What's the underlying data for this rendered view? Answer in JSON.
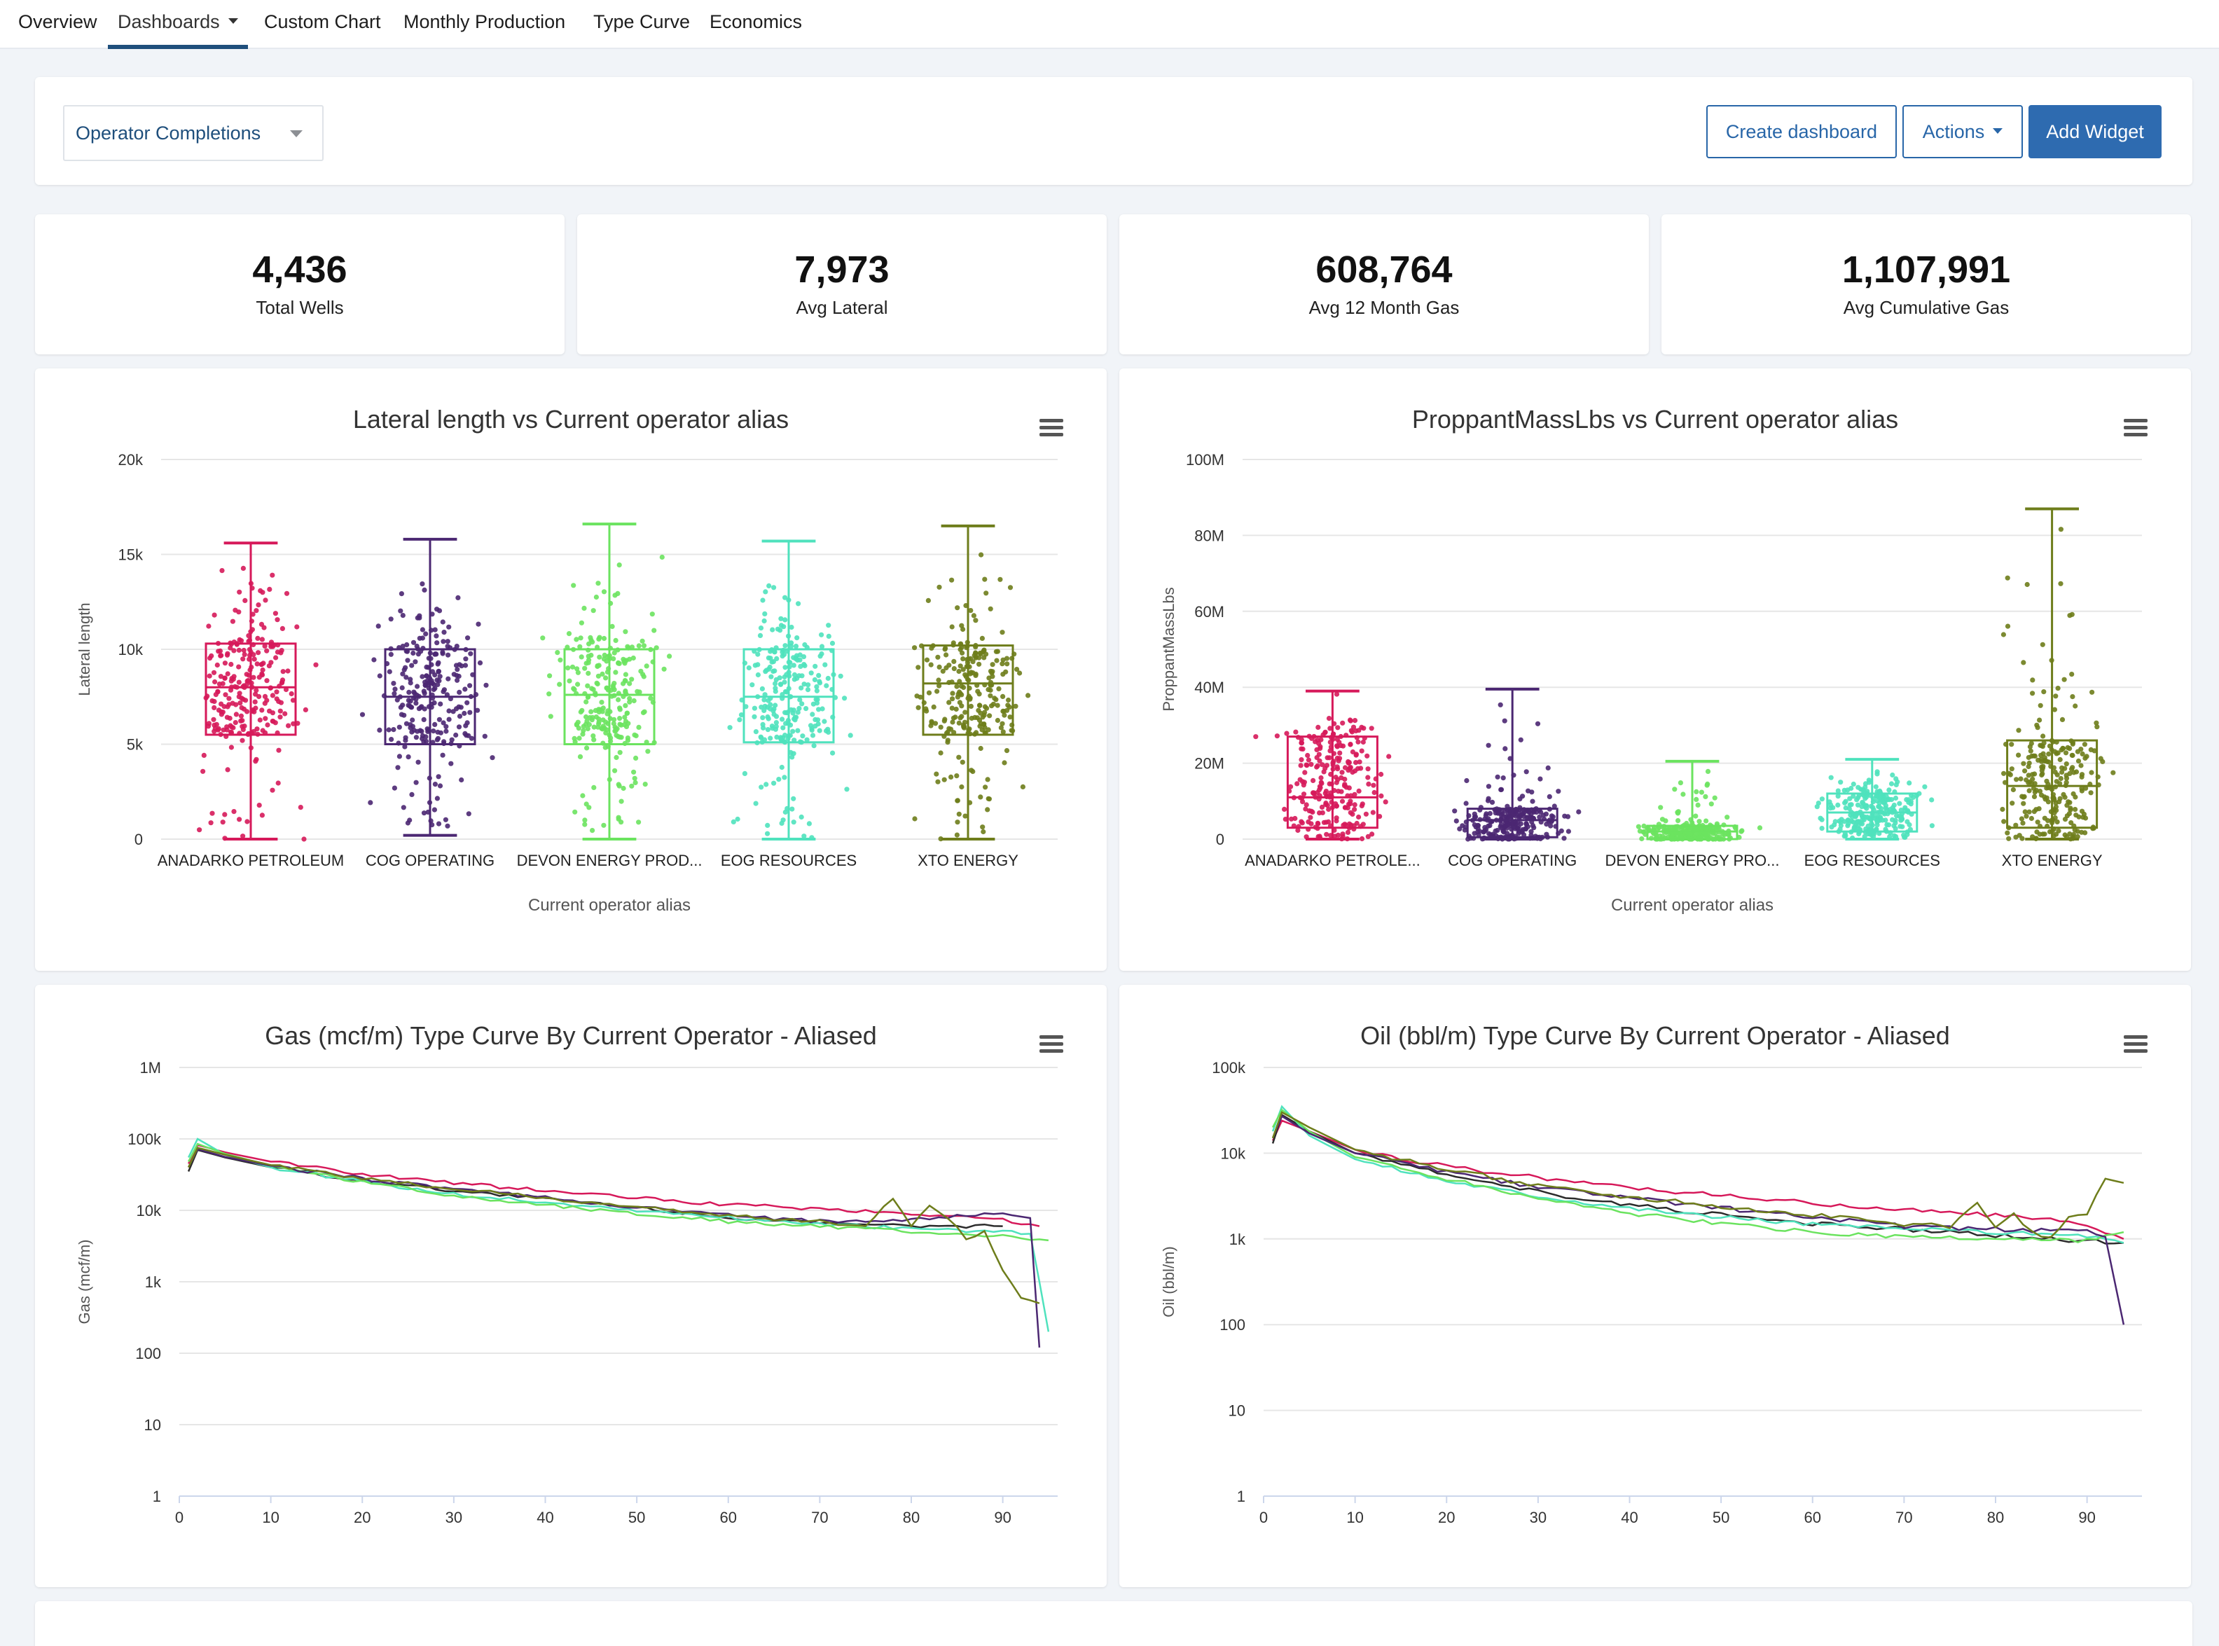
{
  "nav": {
    "tabs": [
      {
        "label": "Overview"
      },
      {
        "label": "Dashboards"
      },
      {
        "label": "Custom Chart"
      },
      {
        "label": "Monthly Production"
      },
      {
        "label": "Type Curve"
      },
      {
        "label": "Economics"
      }
    ]
  },
  "toolbar": {
    "dashboard_select": "Operator Completions",
    "create_label": "Create dashboard",
    "actions_label": "Actions",
    "add_widget_label": "Add Widget"
  },
  "kpis": [
    {
      "value": "4,436",
      "label": "Total Wells"
    },
    {
      "value": "7,973",
      "label": "Avg Lateral"
    },
    {
      "value": "608,764",
      "label": "Avg 12 Month Gas"
    },
    {
      "value": "1,107,991",
      "label": "Avg Cumulative Gas"
    }
  ],
  "colors": {
    "ANADARKO": "#d6195a",
    "COG": "#4b2772",
    "DEVON": "#6be35f",
    "EOG": "#4fe2bd",
    "XTO": "#6e7d1b",
    "BLACK": "#2b2b2b"
  },
  "chart_data": [
    {
      "type": "box",
      "title": "Lateral length vs Current operator alias",
      "xlabel": "Current operator alias",
      "ylabel": "Lateral length",
      "ylim": [
        0,
        20000
      ],
      "yticks": [
        "0",
        "5k",
        "10k",
        "15k",
        "20k"
      ],
      "categories": [
        "ANADARKO PETROLEUM",
        "COG OPERATING",
        "DEVON ENERGY PROD...",
        "EOG RESOURCES",
        "XTO ENERGY"
      ],
      "boxes": [
        {
          "low": 0,
          "q1": 5500,
          "median": 8000,
          "q3": 10300,
          "high": 15600
        },
        {
          "low": 200,
          "q1": 5000,
          "median": 7500,
          "q3": 10000,
          "high": 15800
        },
        {
          "low": 0,
          "q1": 5000,
          "median": 7600,
          "q3": 10000,
          "high": 16600
        },
        {
          "low": 0,
          "q1": 5100,
          "median": 7500,
          "q3": 10000,
          "high": 15700
        },
        {
          "low": 0,
          "q1": 5500,
          "median": 8200,
          "q3": 10200,
          "high": 16500
        }
      ]
    },
    {
      "type": "box",
      "title": "ProppantMassLbs vs Current operator alias",
      "xlabel": "Current operator alias",
      "ylabel": "ProppantMassLbs",
      "ylim": [
        0,
        100000000
      ],
      "yticks": [
        "0",
        "20M",
        "40M",
        "60M",
        "80M",
        "100M"
      ],
      "categories": [
        "ANADARKO PETROLE...",
        "COG OPERATING",
        "DEVON ENERGY PRO...",
        "EOG RESOURCES",
        "XTO ENERGY"
      ],
      "boxes": [
        {
          "low": 0,
          "q1": 3000000,
          "median": 11000000,
          "q3": 27000000,
          "high": 39000000
        },
        {
          "low": 0,
          "q1": 500000,
          "median": 5000000,
          "q3": 8000000,
          "high": 39500000
        },
        {
          "low": 0,
          "q1": 0,
          "median": 2000000,
          "q3": 3500000,
          "high": 20500000
        },
        {
          "low": 0,
          "q1": 2000000,
          "median": 7000000,
          "q3": 12000000,
          "high": 21000000
        },
        {
          "low": 0,
          "q1": 3000000,
          "median": 14000000,
          "q3": 26000000,
          "high": 87000000
        }
      ]
    },
    {
      "type": "line",
      "title": "Gas (mcf/m) Type Curve By Current Operator - Aliased",
      "ylabel": "Gas (mcf/m)",
      "yscale": "log",
      "ylim": [
        1,
        1000000
      ],
      "yticks": [
        "1",
        "10",
        "100",
        "1k",
        "10k",
        "100k",
        "1M"
      ],
      "xlim": [
        0,
        96
      ],
      "xticks": [
        "0",
        "10",
        "20",
        "30",
        "40",
        "50",
        "60",
        "70",
        "80",
        "90"
      ],
      "series": [
        {
          "color": "ANADARKO",
          "points": [
            [
              1,
              45000
            ],
            [
              2,
              82000
            ],
            [
              5,
              65000
            ],
            [
              10,
              48000
            ],
            [
              20,
              32000
            ],
            [
              30,
              24000
            ],
            [
              40,
              19000
            ],
            [
              50,
              15000
            ],
            [
              60,
              12000
            ],
            [
              70,
              10500
            ],
            [
              80,
              9000
            ],
            [
              90,
              7500
            ],
            [
              94,
              6000
            ]
          ]
        },
        {
          "color": "BLACK",
          "points": [
            [
              1,
              35000
            ],
            [
              2,
              70000
            ],
            [
              5,
              55000
            ],
            [
              10,
              40000
            ],
            [
              20,
              26000
            ],
            [
              30,
              19000
            ],
            [
              40,
              14500
            ],
            [
              50,
              11000
            ],
            [
              60,
              8000
            ],
            [
              70,
              6500
            ],
            [
              80,
              6000
            ],
            [
              90,
              6000
            ]
          ]
        },
        {
          "color": "EOG",
          "points": [
            [
              1,
              55000
            ],
            [
              2,
              100000
            ],
            [
              5,
              60000
            ],
            [
              10,
              40000
            ],
            [
              20,
              25000
            ],
            [
              30,
              17000
            ],
            [
              40,
              13000
            ],
            [
              50,
              10000
            ],
            [
              60,
              8000
            ],
            [
              70,
              6500
            ],
            [
              80,
              5500
            ],
            [
              90,
              5000
            ],
            [
              93,
              4800
            ],
            [
              95,
              200
            ]
          ]
        },
        {
          "color": "DEVON",
          "points": [
            [
              1,
              48000
            ],
            [
              2,
              85000
            ],
            [
              5,
              62000
            ],
            [
              10,
              42000
            ],
            [
              20,
              25000
            ],
            [
              30,
              16000
            ],
            [
              40,
              12000
            ],
            [
              50,
              9000
            ],
            [
              60,
              7000
            ],
            [
              70,
              6000
            ],
            [
              80,
              5000
            ],
            [
              90,
              4300
            ],
            [
              95,
              3800
            ]
          ]
        },
        {
          "color": "COG",
          "points": [
            [
              1,
              40000
            ],
            [
              2,
              72000
            ],
            [
              5,
              56000
            ],
            [
              10,
              42000
            ],
            [
              20,
              28000
            ],
            [
              30,
              20000
            ],
            [
              40,
              15000
            ],
            [
              50,
              11000
            ],
            [
              60,
              8500
            ],
            [
              70,
              7000
            ],
            [
              80,
              7500
            ],
            [
              90,
              9000
            ],
            [
              93,
              8000
            ],
            [
              94,
              120
            ]
          ]
        },
        {
          "color": "XTO",
          "points": [
            [
              1,
              40000
            ],
            [
              2,
              75000
            ],
            [
              5,
              60000
            ],
            [
              10,
              43000
            ],
            [
              20,
              28000
            ],
            [
              30,
              20000
            ],
            [
              40,
              15000
            ],
            [
              50,
              11000
            ],
            [
              60,
              8500
            ],
            [
              70,
              7000
            ],
            [
              75,
              6000
            ],
            [
              78,
              15000
            ],
            [
              80,
              6000
            ],
            [
              82,
              12000
            ],
            [
              84,
              8000
            ],
            [
              86,
              4000
            ],
            [
              88,
              5000
            ],
            [
              90,
              1500
            ],
            [
              92,
              600
            ],
            [
              94,
              500
            ]
          ]
        }
      ]
    },
    {
      "type": "line",
      "title": "Oil (bbl/m) Type Curve By Current Operator - Aliased",
      "ylabel": "Oil (bbl/m)",
      "yscale": "log",
      "ylim": [
        1,
        100000
      ],
      "yticks": [
        "1",
        "10",
        "100",
        "1k",
        "10k",
        "100k"
      ],
      "xlim": [
        0,
        96
      ],
      "xticks": [
        "0",
        "10",
        "20",
        "30",
        "40",
        "50",
        "60",
        "70",
        "80",
        "90"
      ],
      "series": [
        {
          "color": "ANADARKO",
          "points": [
            [
              1,
              14000
            ],
            [
              2,
              24000
            ],
            [
              5,
              18000
            ],
            [
              10,
              11000
            ],
            [
              20,
              7000
            ],
            [
              30,
              5200
            ],
            [
              40,
              4000
            ],
            [
              50,
              3200
            ],
            [
              60,
              2600
            ],
            [
              70,
              2200
            ],
            [
              80,
              1900
            ],
            [
              90,
              1500
            ],
            [
              94,
              1000
            ]
          ]
        },
        {
          "color": "BLACK",
          "points": [
            [
              1,
              13000
            ],
            [
              2,
              28000
            ],
            [
              5,
              18000
            ],
            [
              10,
              10000
            ],
            [
              20,
              5500
            ],
            [
              30,
              3500
            ],
            [
              40,
              2500
            ],
            [
              50,
              1900
            ],
            [
              60,
              1500
            ],
            [
              70,
              1300
            ],
            [
              80,
              1100
            ],
            [
              90,
              950
            ],
            [
              94,
              900
            ]
          ]
        },
        {
          "color": "EOG",
          "points": [
            [
              1,
              18000
            ],
            [
              2,
              35000
            ],
            [
              5,
              16000
            ],
            [
              10,
              8500
            ],
            [
              20,
              4800
            ],
            [
              30,
              3200
            ],
            [
              40,
              2300
            ],
            [
              50,
              1800
            ],
            [
              60,
              1500
            ],
            [
              70,
              1300
            ],
            [
              80,
              1200
            ],
            [
              90,
              1100
            ],
            [
              94,
              900
            ]
          ]
        },
        {
          "color": "DEVON",
          "points": [
            [
              1,
              20000
            ],
            [
              2,
              32000
            ],
            [
              5,
              18000
            ],
            [
              10,
              9000
            ],
            [
              20,
              5000
            ],
            [
              30,
              3000
            ],
            [
              40,
              2000
            ],
            [
              50,
              1500
            ],
            [
              60,
              1200
            ],
            [
              70,
              1050
            ],
            [
              80,
              1000
            ],
            [
              90,
              950
            ],
            [
              94,
              1200
            ]
          ]
        },
        {
          "color": "COG",
          "points": [
            [
              1,
              15000
            ],
            [
              2,
              27000
            ],
            [
              5,
              17000
            ],
            [
              10,
              10000
            ],
            [
              20,
              6000
            ],
            [
              30,
              4000
            ],
            [
              40,
              3000
            ],
            [
              50,
              2300
            ],
            [
              60,
              1800
            ],
            [
              70,
              1400
            ],
            [
              80,
              1300
            ],
            [
              90,
              1200
            ],
            [
              92,
              1000
            ],
            [
              94,
              100
            ]
          ]
        },
        {
          "color": "XTO",
          "points": [
            [
              1,
              15000
            ],
            [
              2,
              30000
            ],
            [
              5,
              20000
            ],
            [
              10,
              11000
            ],
            [
              20,
              6500
            ],
            [
              30,
              4200
            ],
            [
              40,
              3100
            ],
            [
              50,
              2400
            ],
            [
              60,
              1900
            ],
            [
              70,
              1500
            ],
            [
              75,
              1400
            ],
            [
              78,
              2500
            ],
            [
              80,
              1300
            ],
            [
              82,
              2000
            ],
            [
              84,
              1200
            ],
            [
              86,
              1000
            ],
            [
              88,
              1800
            ],
            [
              90,
              2000
            ],
            [
              92,
              5000
            ],
            [
              94,
              4500
            ]
          ]
        }
      ]
    }
  ]
}
